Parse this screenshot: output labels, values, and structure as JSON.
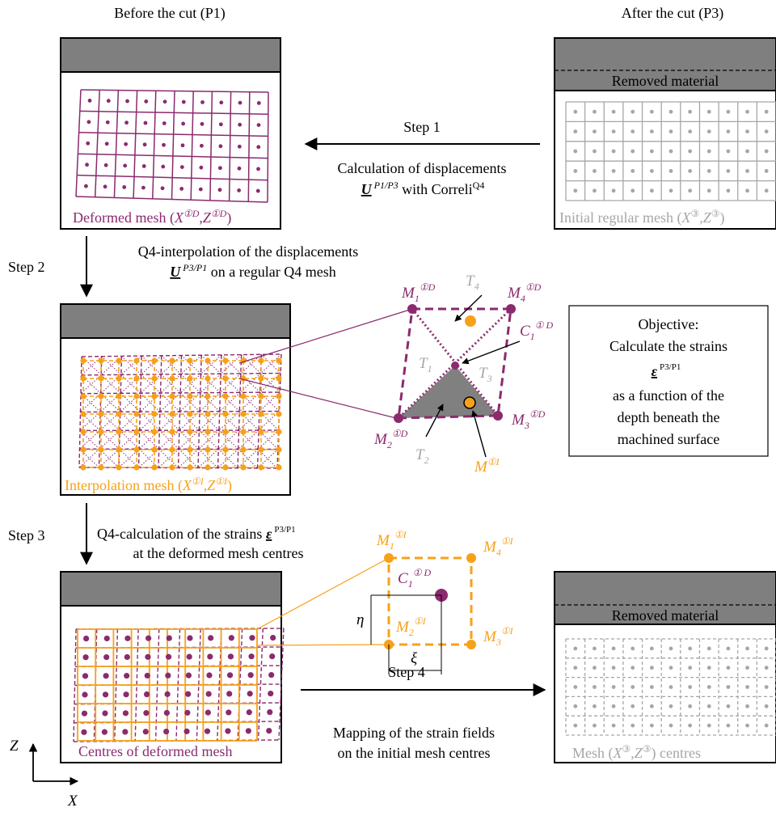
{
  "headers": {
    "before": "Before the cut (P1)",
    "after": "After the cut (P3)"
  },
  "colors": {
    "purple": "#8B2A6E",
    "orange": "#F7A11A",
    "grey_band": "#7F7F7F",
    "light_grey": "#A6A6A6"
  },
  "panels": {
    "p1_deformed": {
      "caption_pre": "Deformed mesh (",
      "var1": "X",
      "sup1": "①D",
      "var2": "Z",
      "sup2": "①D",
      "caption_post": ")"
    },
    "p3_initial": {
      "band": "Removed material",
      "caption_pre": "Initial regular mesh (",
      "var1": "X",
      "sup1": "③",
      "var2": "Z",
      "sup2": "③",
      "caption_post": ")"
    },
    "p1_interp": {
      "caption_pre": "Interpolation mesh (",
      "var1": "X",
      "sup1": "①I",
      "var2": "Z",
      "sup2": "①I",
      "caption_post": ")"
    },
    "p1_centres": {
      "caption": "Centres of deformed mesh"
    },
    "p3_final": {
      "band": "Removed material",
      "caption_pre": "Mesh (",
      "var1": "X",
      "sup1": "③",
      "var2": "Z",
      "sup2": "③",
      "caption_post": ") centres"
    }
  },
  "steps": {
    "step1": {
      "label": "Step 1",
      "line1": "Calculation of displacements",
      "u": "U",
      "u_sup": " P1/P3",
      "line2_post": " with Correli",
      "correli_sup": "Q4"
    },
    "step2": {
      "label": "Step 2",
      "line1": "Q4-interpolation of the displacements",
      "u": "U",
      "u_sup": " P3/P1",
      "line2_post": " on a regular Q4 mesh"
    },
    "step3": {
      "label": "Step 3",
      "line1_pre": "Q4-calculation of the strains ",
      "eps": "ε",
      "eps_sup": "P3/P1",
      "line2": "at the deformed mesh centres"
    },
    "step4": {
      "label": "Step 4",
      "line1": "Mapping of the strain fields",
      "line2": "on the initial mesh centres"
    }
  },
  "detail1": {
    "M1": {
      "base": "M",
      "sub": "1",
      "sup": "①D"
    },
    "M2": {
      "base": "M",
      "sub": "2",
      "sup": "①D"
    },
    "M3": {
      "base": "M",
      "sub": "3",
      "sup": "①D"
    },
    "M4": {
      "base": "M",
      "sub": "4",
      "sup": "①D"
    },
    "C1": {
      "base": "C",
      "sub": "1",
      "sup": "① D"
    },
    "MI": {
      "base": "M",
      "sup": "①I"
    },
    "T1": {
      "base": "T",
      "sub": "1"
    },
    "T2": {
      "base": "T",
      "sub": "2"
    },
    "T3": {
      "base": "T",
      "sub": "3"
    },
    "T4": {
      "base": "T",
      "sub": "4"
    }
  },
  "objective": {
    "line1": "Objective:",
    "line2": "Calculate the strains",
    "eps": "ε",
    "eps_sup": "P3/P1",
    "line4": "as a function of the",
    "line5": "depth beneath the",
    "line6": "machined surface"
  },
  "detail2": {
    "M1": {
      "base": "M",
      "sub": "1",
      "sup": "①I"
    },
    "M2": {
      "base": "M",
      "sub": "2",
      "sup": "①I"
    },
    "M3": {
      "base": "M",
      "sub": "3",
      "sup": "①I"
    },
    "M4": {
      "base": "M",
      "sub": "4",
      "sup": "①I"
    },
    "C1": {
      "base": "C",
      "sub": "1",
      "sup": "① D"
    },
    "eta": "η",
    "xi": "ξ"
  },
  "axes": {
    "z": "Z",
    "x": "X"
  }
}
